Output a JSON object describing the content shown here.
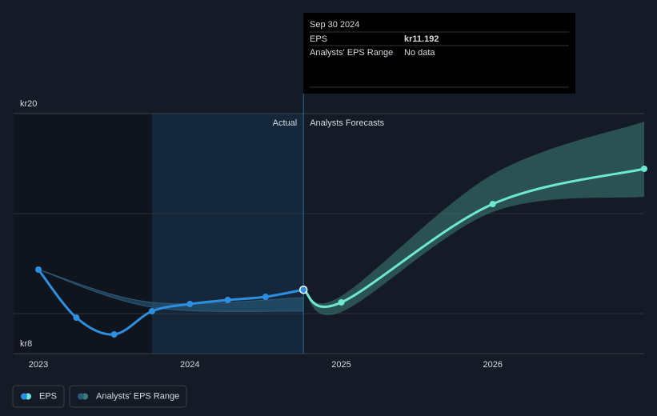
{
  "chart_data": {
    "type": "line",
    "xlim": [
      2022.836,
      2027
    ],
    "xticks": [
      2023,
      2024,
      2025,
      2026
    ],
    "ylim": [
      8,
      20
    ],
    "yticks": [
      {
        "value": 20,
        "label": "kr20"
      },
      {
        "value": 8,
        "label": "kr8"
      }
    ],
    "grid_lines": [
      15,
      10
    ],
    "series": [
      {
        "name": "EPS",
        "color": "#2d8fe0",
        "x": [
          2023,
          2023.25,
          2023.5,
          2023.75,
          2024,
          2024.25,
          2024.5,
          2024.75
        ],
        "values": [
          12.2,
          9.8,
          8.96,
          10.12,
          10.48,
          10.68,
          10.84,
          11.192
        ]
      }
    ],
    "forecast": {
      "color": "#6ee7d3",
      "band_color": "#3d7f78",
      "x": [
        2024.75,
        2025,
        2026,
        2027
      ],
      "values": [
        11.192,
        10.56,
        15.48,
        17.24
      ],
      "low": [
        11.192,
        10.08,
        15.08,
        15.84
      ],
      "high": [
        11.192,
        10.88,
        16.96,
        19.6
      ]
    },
    "past_range": {
      "name": "Analysts' EPS Range",
      "color": "#2a5a7a",
      "x": [
        2023,
        2023.75,
        2024.75
      ],
      "low": [
        12.2,
        10.32,
        10.12
      ],
      "high": [
        12.2,
        10.56,
        10.8
      ]
    },
    "annotations": {
      "actual": "Actual",
      "forecast": "Analysts Forecasts"
    },
    "tooltip": {
      "date": "Sep 30 2024",
      "rows": [
        {
          "label": "EPS",
          "value": "kr11.192"
        },
        {
          "label": "Analysts' EPS Range",
          "value": "No data"
        }
      ]
    }
  }
}
